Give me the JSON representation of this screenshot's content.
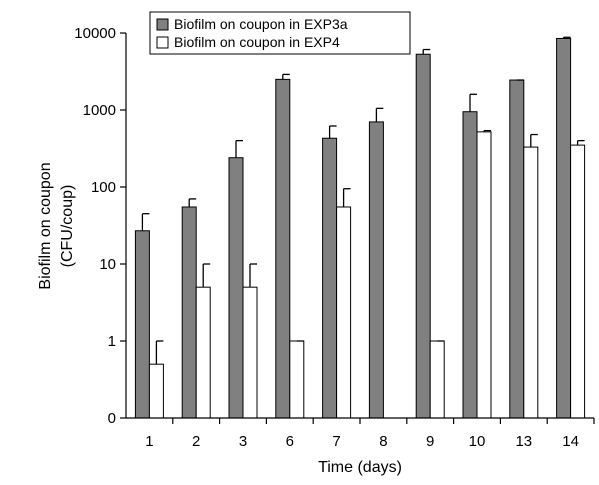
{
  "chart_data": {
    "type": "bar",
    "yscale": "log",
    "ylim": [
      0,
      10000
    ],
    "xlabel": "Time (days)",
    "ylabel": [
      "Biofilm on coupon",
      "(CFU/coup)"
    ],
    "ytick_labels": [
      "0",
      "1",
      "10",
      "100",
      "1000",
      "10000"
    ],
    "ytick_values": [
      0.1,
      1,
      10,
      100,
      1000,
      10000
    ],
    "categories": [
      "1",
      "2",
      "3",
      "6",
      "7",
      "8",
      "9",
      "10",
      "13",
      "14"
    ],
    "legend_position": "top-left",
    "series": [
      {
        "name": "Biofilm on coupon in EXP3a",
        "color": "#808080",
        "values": [
          27,
          55,
          240,
          2500,
          430,
          700,
          5300,
          950,
          2450,
          8500
        ],
        "errors_upper": [
          45,
          70,
          400,
          2900,
          620,
          1050,
          6100,
          1600,
          2450,
          8800
        ]
      },
      {
        "name": "Biofilm on coupon in EXP4",
        "color": "#ffffff",
        "values": [
          0.5,
          5,
          5,
          1,
          55,
          0.1,
          1,
          520,
          330,
          350
        ],
        "errors_upper": [
          1,
          10,
          10,
          1,
          95,
          0.1,
          1,
          540,
          480,
          400
        ]
      }
    ]
  }
}
